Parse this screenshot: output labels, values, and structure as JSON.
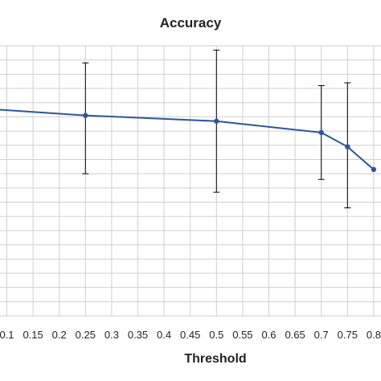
{
  "chart_data": {
    "type": "line",
    "title": "Accuracy",
    "xlabel": "Threshold",
    "ylabel": "",
    "x_ticks": [
      "0.1",
      "0.15",
      "0.2",
      "0.25",
      "0.3",
      "0.35",
      "0.4",
      "0.45",
      "0.5",
      "0.55",
      "0.6",
      "0.65",
      "0.7",
      "0.75",
      "0.8"
    ],
    "xlim": [
      0.075,
      0.855
    ],
    "ylim": [
      0,
      19
    ],
    "grid": true,
    "series": [
      {
        "color": "#2f5597",
        "points": [
          {
            "x": 0.05,
            "y": 14.6
          },
          {
            "x": 0.25,
            "y": 14.1,
            "err_low": 10.0,
            "err_high": 17.8
          },
          {
            "x": 0.5,
            "y": 13.7,
            "err_low": 8.7,
            "err_high": 18.7
          },
          {
            "x": 0.7,
            "y": 12.9,
            "err_low": 9.6,
            "err_high": 16.2
          },
          {
            "x": 0.75,
            "y": 11.9,
            "err_low": 7.6,
            "err_high": 16.4
          },
          {
            "x": 0.8,
            "y": 10.3
          }
        ]
      }
    ]
  }
}
